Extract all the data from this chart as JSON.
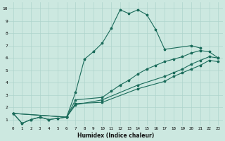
{
  "xlabel": "Humidex (Indice chaleur)",
  "bg_color": "#cce8e0",
  "grid_color": "#aed4cc",
  "line_color": "#1a6b5a",
  "xlim": [
    -0.5,
    23.5
  ],
  "ylim": [
    0.5,
    10.5
  ],
  "line1_x": [
    0,
    1,
    2,
    3,
    4,
    5,
    6,
    7,
    8,
    9,
    10,
    11,
    12,
    13,
    14,
    15,
    16,
    17,
    20,
    21
  ],
  "line1_y": [
    1.5,
    0.7,
    1.0,
    1.2,
    1.0,
    1.1,
    1.2,
    3.2,
    5.9,
    6.5,
    7.2,
    8.4,
    9.9,
    9.6,
    9.9,
    9.5,
    8.3,
    6.7,
    7.0,
    6.8
  ],
  "line2_x": [
    0,
    1,
    2,
    3,
    4,
    5,
    6,
    7,
    10,
    11,
    12,
    13,
    14,
    15,
    16,
    17,
    18,
    19,
    20,
    21,
    22,
    23
  ],
  "line2_y": [
    1.5,
    0.7,
    1.0,
    1.2,
    1.0,
    1.1,
    1.2,
    2.6,
    2.8,
    3.3,
    3.8,
    4.2,
    4.7,
    5.1,
    5.4,
    5.7,
    5.9,
    6.1,
    6.4,
    6.6,
    6.5,
    6.0
  ],
  "line3_x": [
    0,
    6,
    7,
    10,
    14,
    17,
    18,
    19,
    20,
    21,
    22,
    23
  ],
  "line3_y": [
    1.5,
    1.2,
    2.2,
    2.6,
    3.8,
    4.5,
    4.8,
    5.1,
    5.5,
    5.8,
    6.1,
    6.0
  ],
  "line4_x": [
    0,
    6,
    7,
    10,
    14,
    17,
    18,
    19,
    20,
    21,
    22,
    23
  ],
  "line4_y": [
    1.5,
    1.2,
    2.3,
    2.4,
    3.5,
    4.1,
    4.5,
    4.8,
    5.1,
    5.4,
    5.8,
    5.7
  ]
}
